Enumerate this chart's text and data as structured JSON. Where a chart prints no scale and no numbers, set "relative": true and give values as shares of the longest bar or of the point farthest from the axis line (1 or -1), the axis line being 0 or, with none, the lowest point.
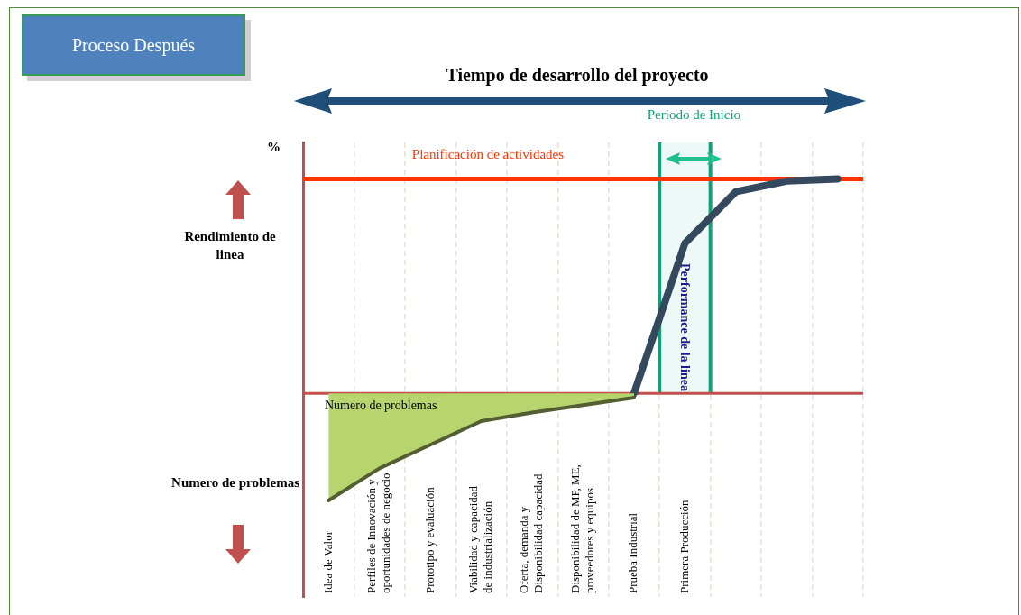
{
  "chart_data": {
    "type": "line",
    "title": "Tiempo de desarrollo del proyecto",
    "subtitle": "Proceso Después",
    "ylabel": "Rendimiento de linea",
    "relative": true,
    "legend": false,
    "grid": "x",
    "tick_labels": "x",
    "categories": [
      "Idea de Valor",
      "Perfiles de Innovación y oportunidades de negocio",
      "Prototipo y evaluación",
      "Viabilidad y capacidad de industrialización",
      "Oferta, demanda y Disponibilidad capacidad",
      "Disponibilidad de MP, ME, proveedores y equipos",
      "Prueba Industrial",
      "Primera Producción",
      null,
      null,
      null
    ],
    "series": [
      {
        "name": "Numero de problemas",
        "type": "area",
        "color": "#b8d46e",
        "values": [
          -0.5,
          -0.35,
          -0.24,
          -0.13,
          -0.09,
          -0.055,
          -0.02,
          null,
          null,
          null,
          null
        ]
      },
      {
        "name": "Performance de la linea",
        "type": "line",
        "color": "#34495e",
        "values": [
          null,
          null,
          null,
          null,
          null,
          null,
          0,
          0.7,
          0.94,
          0.99,
          1.0
        ]
      }
    ],
    "ref_lines": [
      {
        "axis": "y",
        "value": 1,
        "label": "Planificación de actividades",
        "color": "#ff3300"
      },
      {
        "axis": "y",
        "value": 0,
        "color": "#c0504d"
      }
    ],
    "bands": [
      {
        "axis": "x",
        "from": "Primera Producción",
        "to": "Primera Producción",
        "label": "Periodo de Inicio",
        "color": "#12a07a"
      }
    ],
    "annotations": [
      "%",
      "Numero de problemas"
    ]
  }
}
